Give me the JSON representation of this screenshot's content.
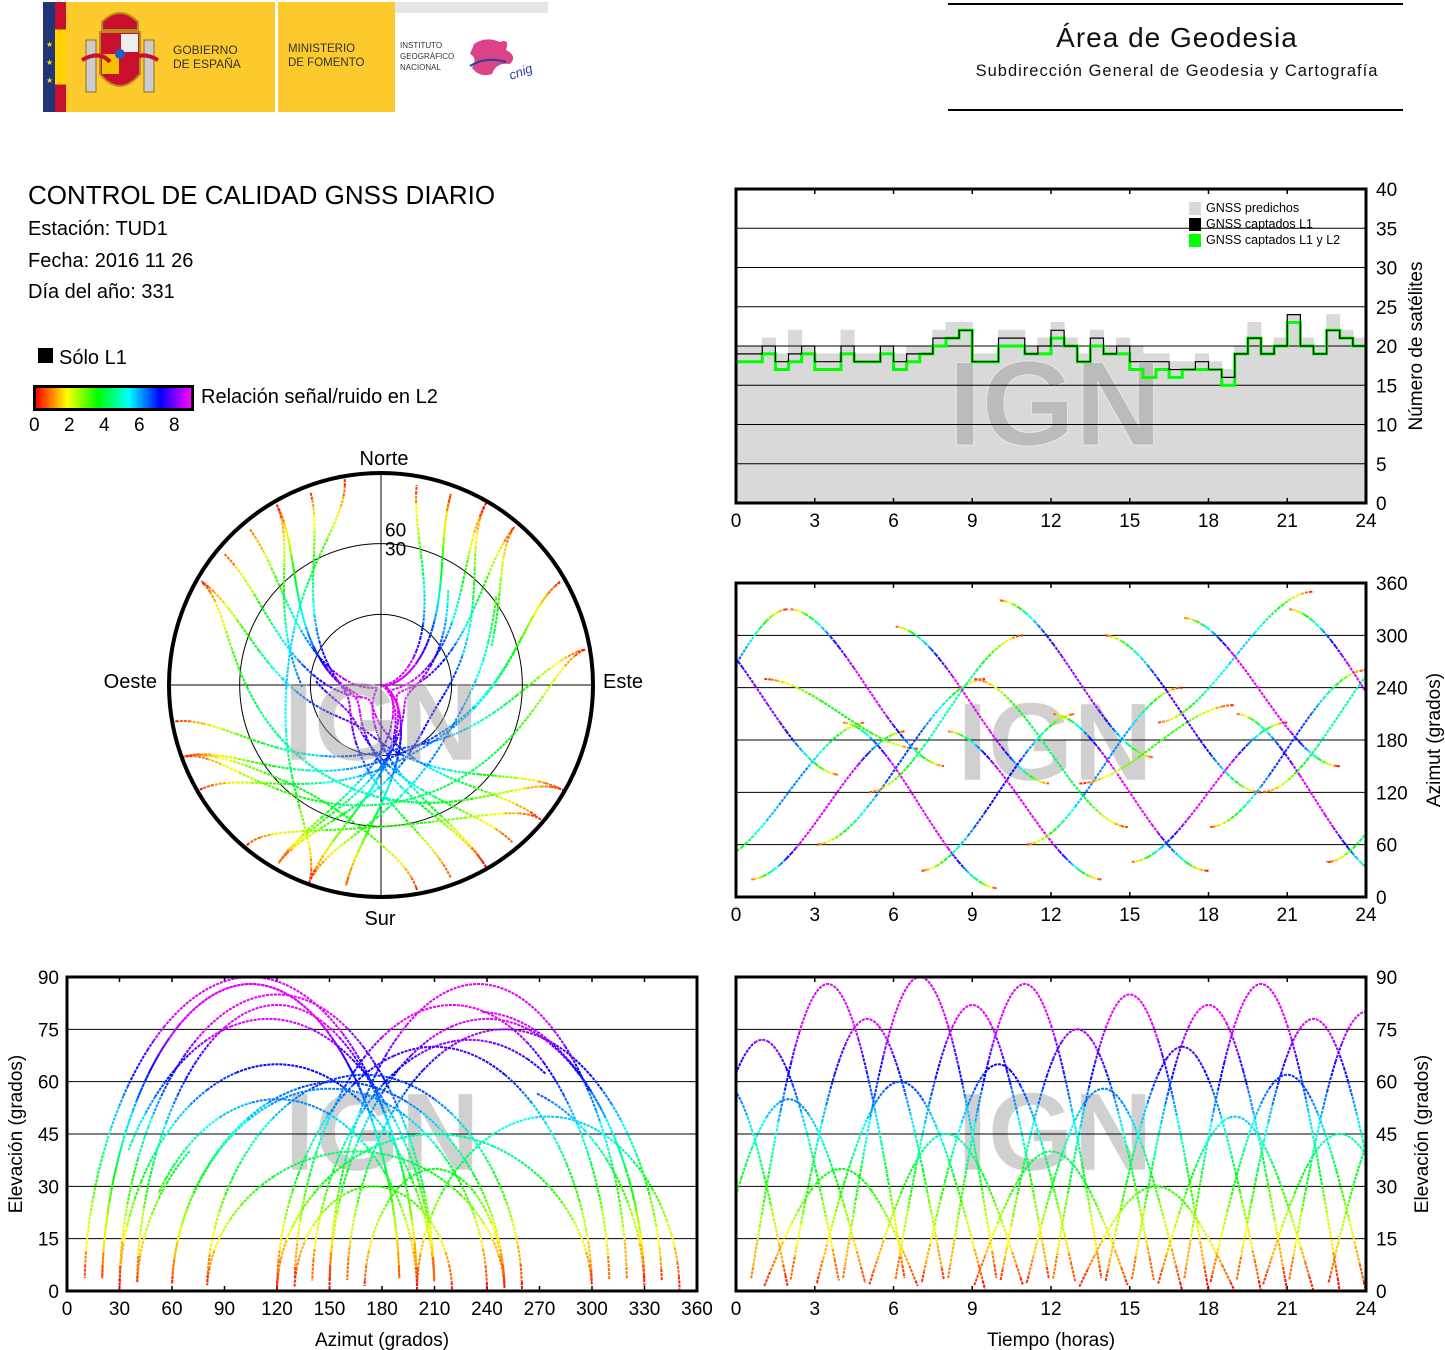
{
  "header": {
    "gov_line1": "GOBIERNO",
    "gov_line2": "DE ESPAÑA",
    "min_line1": "MINISTERIO",
    "min_line2": "DE FOMENTO",
    "ign_line1": "INSTITUTO",
    "ign_line2": "GEOGRÁFICO",
    "ign_line3": "NACIONAL",
    "cnig_logo": "cnig",
    "area_title": "Área de Geodesia",
    "area_subtitle": "Subdirección General de Geodesia y Cartografía"
  },
  "report": {
    "title": "CONTROL DE CALIDAD GNSS DIARIO",
    "station": "Estación: TUD1",
    "date": "Fecha: 2016 11 26",
    "doy": "Día del año: 331"
  },
  "legend": {
    "l1_only": "Sólo L1",
    "snr_label": "Relación señal/ruido en L2",
    "snr_ticks": [
      "0",
      "2",
      "4",
      "6",
      "8"
    ],
    "snr_range": [
      0,
      9
    ],
    "snr_colormap": [
      "#ff0000",
      "#ffff00",
      "#00ff00",
      "#00ffff",
      "#0000ff",
      "#ff00ff"
    ]
  },
  "watermark": "IGN",
  "colors": {
    "predicted": "#d9d9d9",
    "l1": "#000000",
    "l1l2": "#00ff00",
    "grid": "#000000"
  },
  "satellite_passes": [
    {
      "rise_h": -2,
      "set_h": 4,
      "max_elev": 72,
      "az_rise": 320,
      "az_set": 140
    },
    {
      "rise_h": -1,
      "set_h": 5,
      "max_elev": 55,
      "az_rise": 40,
      "az_set": 200
    },
    {
      "rise_h": 0.5,
      "set_h": 6.5,
      "max_elev": 88,
      "az_rise": 20,
      "az_set": 190
    },
    {
      "rise_h": 1,
      "set_h": 7,
      "max_elev": 35,
      "az_rise": 250,
      "az_set": 170
    },
    {
      "rise_h": 2,
      "set_h": 8,
      "max_elev": 78,
      "az_rise": 330,
      "az_set": 150
    },
    {
      "rise_h": 3,
      "set_h": 9.5,
      "max_elev": 60,
      "az_rise": 60,
      "az_set": 250
    },
    {
      "rise_h": 4,
      "set_h": 10,
      "max_elev": 90,
      "az_rise": 200,
      "az_set": 10
    },
    {
      "rise_h": 5,
      "set_h": 11,
      "max_elev": 45,
      "az_rise": 120,
      "az_set": 300
    },
    {
      "rise_h": 6,
      "set_h": 12,
      "max_elev": 82,
      "az_rise": 310,
      "az_set": 130
    },
    {
      "rise_h": 7,
      "set_h": 13,
      "max_elev": 65,
      "az_rise": 30,
      "az_set": 210
    },
    {
      "rise_h": 8,
      "set_h": 14,
      "max_elev": 88,
      "az_rise": 190,
      "az_set": 20
    },
    {
      "rise_h": 9,
      "set_h": 15,
      "max_elev": 40,
      "az_rise": 250,
      "az_set": 80
    },
    {
      "rise_h": 10,
      "set_h": 16,
      "max_elev": 75,
      "az_rise": 340,
      "az_set": 160
    },
    {
      "rise_h": 11,
      "set_h": 17,
      "max_elev": 58,
      "az_rise": 60,
      "az_set": 240
    },
    {
      "rise_h": 12,
      "set_h": 18,
      "max_elev": 85,
      "az_rise": 210,
      "az_set": 30
    },
    {
      "rise_h": 13,
      "set_h": 19,
      "max_elev": 30,
      "az_rise": 130,
      "az_set": 220
    },
    {
      "rise_h": 14,
      "set_h": 20,
      "max_elev": 70,
      "az_rise": 300,
      "az_set": 120
    },
    {
      "rise_h": 15,
      "set_h": 21,
      "max_elev": 82,
      "az_rise": 40,
      "az_set": 200
    },
    {
      "rise_h": 16,
      "set_h": 22,
      "max_elev": 50,
      "az_rise": 200,
      "az_set": 350
    },
    {
      "rise_h": 17,
      "set_h": 23,
      "max_elev": 88,
      "az_rise": 320,
      "az_set": 150
    },
    {
      "rise_h": 18,
      "set_h": 24,
      "max_elev": 62,
      "az_rise": 80,
      "az_set": 260
    },
    {
      "rise_h": 19,
      "set_h": 25,
      "max_elev": 78,
      "az_rise": 210,
      "az_set": 20
    },
    {
      "rise_h": 20,
      "set_h": 26,
      "max_elev": 45,
      "az_rise": 120,
      "az_set": 300
    },
    {
      "rise_h": 21,
      "set_h": 27,
      "max_elev": 80,
      "az_rise": 330,
      "az_set": 140
    },
    {
      "rise_h": -3,
      "set_h": 2,
      "max_elev": 60,
      "az_rise": 150,
      "az_set": 330
    },
    {
      "rise_h": 22.5,
      "set_h": 28,
      "max_elev": 55,
      "az_rise": 40,
      "az_set": 220
    }
  ],
  "chart_data": [
    {
      "id": "satellites",
      "type": "line",
      "ylabel": "Número de satélites",
      "xlim": [
        0,
        24
      ],
      "ylim": [
        0,
        40
      ],
      "xticks": [
        "0",
        "3",
        "6",
        "9",
        "12",
        "15",
        "18",
        "21",
        "24"
      ],
      "yticks": [
        "0",
        "5",
        "10",
        "15",
        "20",
        "25",
        "30",
        "35",
        "40"
      ],
      "grid": "horizontal",
      "legend": "top-right",
      "x": [
        0,
        0.5,
        1,
        1.5,
        2,
        2.5,
        3,
        3.5,
        4,
        4.5,
        5,
        5.5,
        6,
        6.5,
        7,
        7.5,
        8,
        8.5,
        9,
        9.5,
        10,
        10.5,
        11,
        11.5,
        12,
        12.5,
        13,
        13.5,
        14,
        14.5,
        15,
        15.5,
        16,
        16.5,
        17,
        17.5,
        18,
        18.5,
        19,
        19.5,
        20,
        20.5,
        21,
        21.5,
        22,
        22.5,
        23,
        23.5,
        24
      ],
      "series": [
        {
          "name": "GNSS predichos",
          "values": [
            20,
            20,
            21,
            19,
            22,
            20,
            19,
            19,
            22,
            19,
            19,
            20,
            19,
            20,
            20,
            22,
            23,
            23,
            19,
            19,
            22,
            22,
            20,
            21,
            23,
            21,
            19,
            22,
            20,
            21,
            20,
            19,
            19,
            18,
            18,
            19,
            18,
            17,
            20,
            23,
            20,
            21,
            24,
            21,
            20,
            24,
            22,
            21,
            20
          ]
        },
        {
          "name": "GNSS captados L1",
          "values": [
            19,
            19,
            20,
            18,
            19,
            20,
            18,
            18,
            20,
            18,
            18,
            20,
            18,
            19,
            19,
            21,
            21,
            22,
            18,
            18,
            21,
            21,
            19,
            20,
            22,
            20,
            18,
            21,
            19,
            20,
            18,
            18,
            18,
            17,
            17,
            18,
            17,
            16,
            19,
            21,
            19,
            20,
            24,
            20,
            19,
            22,
            21,
            20,
            19
          ]
        },
        {
          "name": "GNSS captados L1 y L2",
          "values": [
            18,
            18,
            19,
            17,
            18,
            19,
            17,
            17,
            19,
            18,
            18,
            19,
            17,
            18,
            19,
            20,
            21,
            22,
            18,
            18,
            20,
            20,
            19,
            19,
            21,
            20,
            18,
            20,
            19,
            19,
            17,
            16,
            17,
            16,
            17,
            17,
            17,
            15,
            19,
            21,
            19,
            20,
            23,
            20,
            19,
            22,
            21,
            20,
            18
          ]
        }
      ]
    },
    {
      "id": "skyplot",
      "type": "scatter",
      "projection": "polar",
      "directions": {
        "north": "Norte",
        "south": "Sur",
        "west": "Oeste",
        "east": "Este"
      },
      "rings": [
        "30",
        "60"
      ],
      "color_by": "snr_l2"
    },
    {
      "id": "azimuth_time",
      "type": "scatter",
      "ylabel": "Azimut (grados)",
      "xlim": [
        0,
        24
      ],
      "ylim": [
        0,
        360
      ],
      "xticks": [
        "0",
        "3",
        "6",
        "9",
        "12",
        "15",
        "18",
        "21",
        "24"
      ],
      "yticks": [
        "0",
        "60",
        "120",
        "180",
        "240",
        "300",
        "360"
      ],
      "grid": "horizontal",
      "color_by": "snr_l2"
    },
    {
      "id": "elevation_azimuth",
      "type": "scatter",
      "xlabel": "Azimut (grados)",
      "ylabel": "Elevación (grados)",
      "xlim": [
        0,
        360
      ],
      "ylim": [
        0,
        90
      ],
      "xticks": [
        "0",
        "30",
        "60",
        "90",
        "120",
        "150",
        "180",
        "210",
        "240",
        "270",
        "300",
        "330",
        "360"
      ],
      "yticks": [
        "0",
        "15",
        "30",
        "45",
        "60",
        "75",
        "90"
      ],
      "grid": "horizontal",
      "color_by": "snr_l2"
    },
    {
      "id": "elevation_time",
      "type": "scatter",
      "xlabel": "Tiempo (horas)",
      "ylabel": "Elevación (grados)",
      "xlim": [
        0,
        24
      ],
      "ylim": [
        0,
        90
      ],
      "xticks": [
        "0",
        "3",
        "6",
        "9",
        "12",
        "15",
        "18",
        "21",
        "24"
      ],
      "yticks": [
        "0",
        "15",
        "30",
        "45",
        "60",
        "75",
        "90"
      ],
      "grid": "horizontal",
      "color_by": "snr_l2"
    }
  ]
}
